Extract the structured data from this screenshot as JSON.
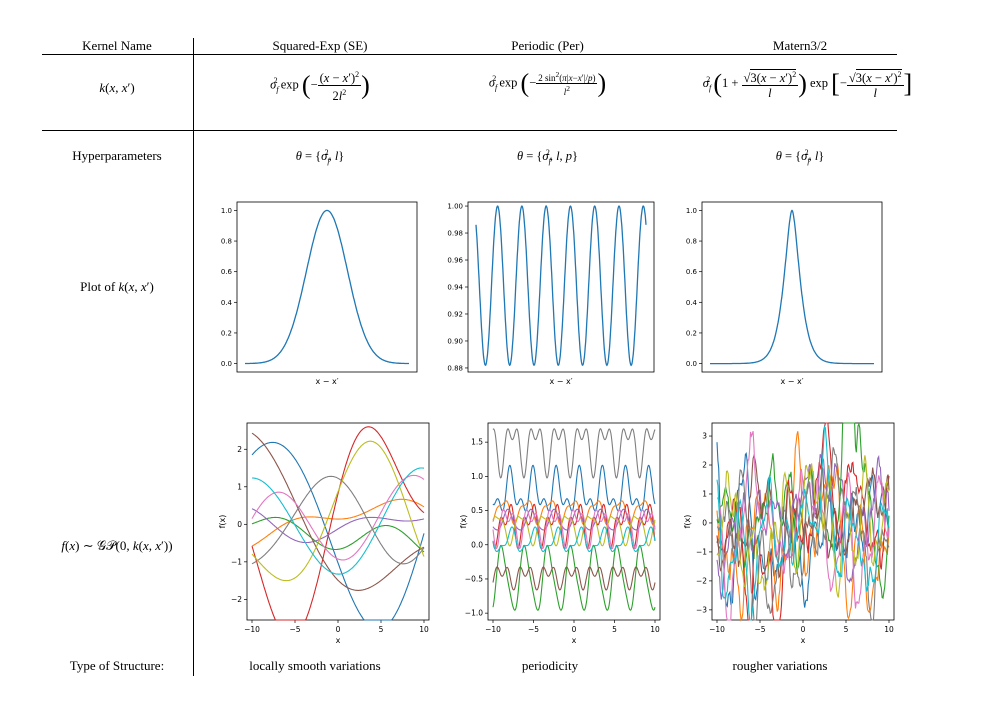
{
  "header": {
    "col0": "Kernel Name",
    "col1": "Squared-Exp (SE)",
    "col2": "Periodic (Per)",
    "col3": "Matern3/2"
  },
  "rows": {
    "kernel": "k(x, x′)",
    "hyper": "Hyperparameters",
    "plot": "Plot of k(x, x′)",
    "samples": "f(x) ∼ 𝒢𝒫(0, k(x, x′))",
    "structure": "Type of Structure:"
  },
  "formulas": {
    "se": "σf² exp(−(x − x′)² / 2l²)",
    "per": "σf² exp(−2 sin²(π|x−x′|/p) / l²)",
    "matern": "σf² (1 + √3(x − x′)² / l) exp[−√3(x − x′)² / l]"
  },
  "hyperparameters": {
    "se": "θ = {σf², l}",
    "per": "θ = {σf², l, p}",
    "matern": "θ = {σf², l}"
  },
  "structures": {
    "se": "locally smooth variations",
    "per": "periodicity",
    "matern": "rougher variations"
  },
  "colors": {
    "kernel_line": "#1f77b4",
    "series": [
      "#1f77b4",
      "#ff7f0e",
      "#2ca02c",
      "#d62728",
      "#9467bd",
      "#8c564b",
      "#e377c2",
      "#7f7f7f",
      "#bcbd22",
      "#17becf"
    ]
  },
  "chart_data": [
    {
      "type": "line",
      "id": "se_kernel",
      "title": "",
      "xlabel": "x − x′",
      "ylabel": "",
      "yticks": [
        "0.0",
        "0.2",
        "0.4",
        "0.6",
        "0.8",
        "1.0"
      ],
      "ylim": [
        0,
        1
      ],
      "xlim": [
        -4,
        4
      ],
      "description": "Gaussian bump centered at 0, peak 1.0",
      "x": [
        -4,
        -3,
        -2.5,
        -2,
        -1.5,
        -1,
        -0.5,
        0,
        0.5,
        1,
        1.5,
        2,
        2.5,
        3,
        4
      ],
      "y": [
        0.0,
        0.01,
        0.04,
        0.13,
        0.32,
        0.61,
        0.88,
        1.0,
        0.88,
        0.61,
        0.32,
        0.13,
        0.04,
        0.01,
        0.0
      ]
    },
    {
      "type": "line",
      "id": "per_kernel",
      "title": "",
      "xlabel": "x − x′",
      "ylabel": "",
      "yticks": [
        "0.88",
        "0.90",
        "0.92",
        "0.94",
        "0.96",
        "0.98",
        "1.00"
      ],
      "ylim": [
        0.88,
        1.0
      ],
      "description": "Periodic oscillation between ~0.882 and 1.0, 7 peaks",
      "periods": 7,
      "min": 0.882,
      "max": 1.0
    },
    {
      "type": "line",
      "id": "matern_kernel",
      "title": "",
      "xlabel": "x − x′",
      "ylabel": "",
      "yticks": [
        "0.0",
        "0.2",
        "0.4",
        "0.6",
        "0.8",
        "1.0"
      ],
      "ylim": [
        0,
        1
      ],
      "description": "Sharp peak at 0 with exponential-like decay",
      "x": [
        -4,
        -3,
        -2,
        -1.5,
        -1,
        -0.5,
        -0.25,
        0,
        0.25,
        0.5,
        1,
        1.5,
        2,
        3,
        4
      ],
      "y": [
        0.0,
        0.0,
        0.0,
        0.01,
        0.05,
        0.25,
        0.55,
        1.0,
        0.55,
        0.25,
        0.05,
        0.01,
        0.0,
        0.0,
        0.0
      ]
    },
    {
      "type": "line",
      "id": "se_samples",
      "title": "",
      "xlabel": "x",
      "ylabel": "f(x)",
      "xticks": [
        "−10",
        "−5",
        "0",
        "5",
        "10"
      ],
      "yticks": [
        "−2",
        "−1",
        "0",
        "1",
        "2"
      ],
      "xlim": [
        -10,
        10
      ],
      "ylim": [
        -2.7,
        2.7
      ],
      "series_count": 10,
      "description": "10 smooth GP samples with SE kernel"
    },
    {
      "type": "line",
      "id": "per_samples",
      "title": "",
      "xlabel": "x",
      "ylabel": "f(x)",
      "xticks": [
        "−10",
        "−5",
        "0",
        "5",
        "10"
      ],
      "yticks": [
        "−1.0",
        "−0.5",
        "0.0",
        "0.5",
        "1.0",
        "1.5"
      ],
      "xlim": [
        -10,
        10
      ],
      "ylim": [
        -1.1,
        1.8
      ],
      "series_count": 10,
      "description": "10 periodic GP samples"
    },
    {
      "type": "line",
      "id": "matern_samples",
      "title": "",
      "xlabel": "x",
      "ylabel": "f(x)",
      "xticks": [
        "−10",
        "−5",
        "0",
        "5",
        "10"
      ],
      "yticks": [
        "−3",
        "−2",
        "−1",
        "0",
        "1",
        "2",
        "3"
      ],
      "xlim": [
        -10,
        10
      ],
      "ylim": [
        -3.5,
        3.5
      ],
      "series_count": 10,
      "description": "10 rough GP samples with Matern 3/2 kernel"
    }
  ]
}
